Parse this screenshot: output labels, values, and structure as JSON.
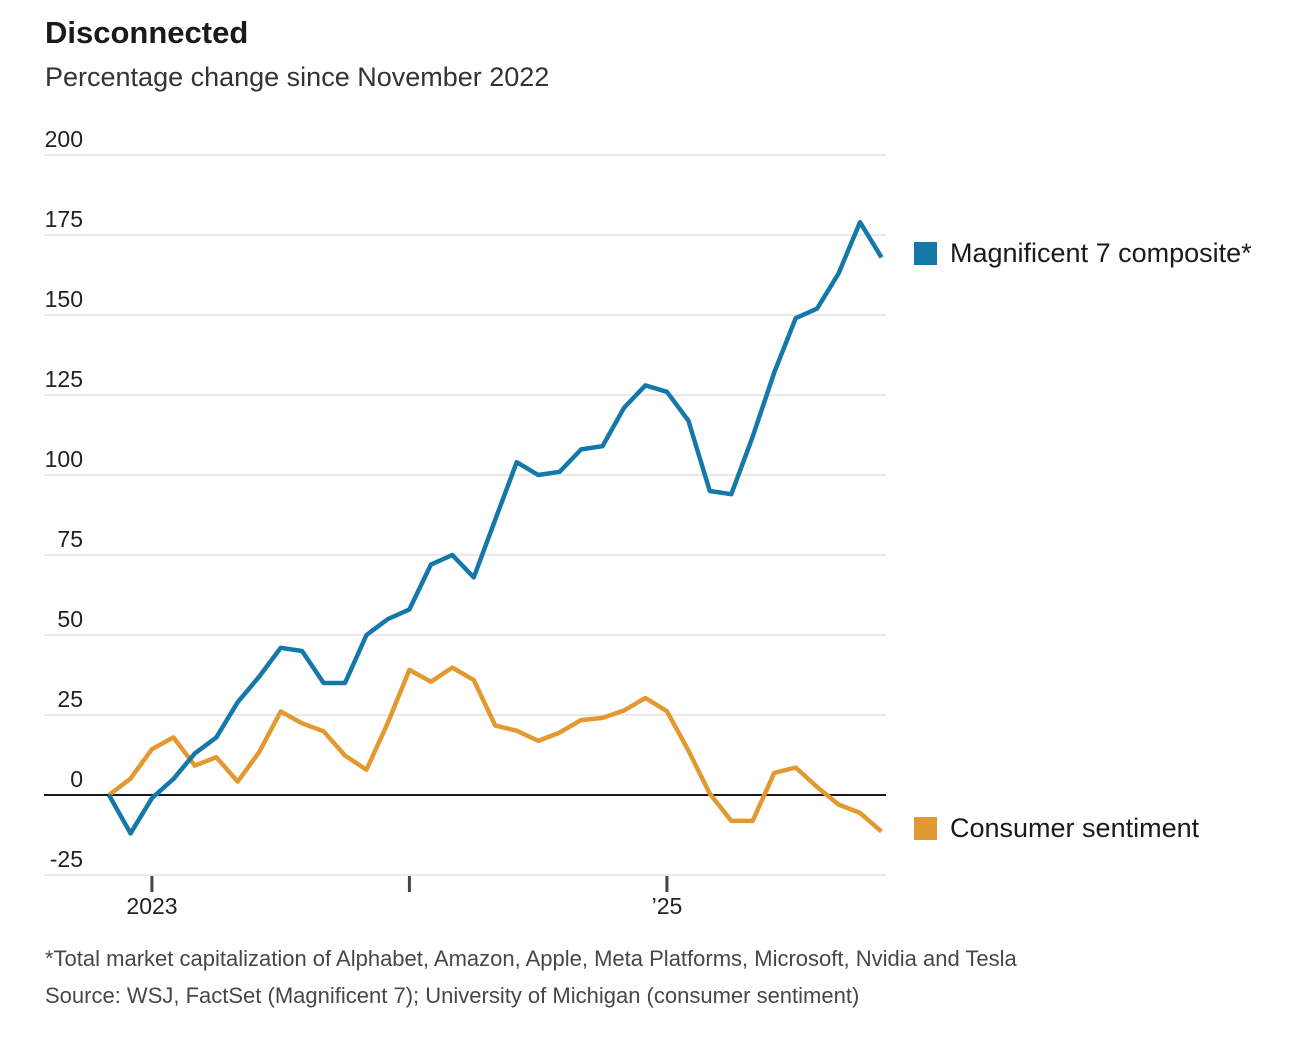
{
  "header": {
    "title": "Disconnected",
    "subtitle": "Percentage change since November 2022"
  },
  "legend": [
    {
      "label": "Magnificent 7 composite*",
      "color": "#1478a8"
    },
    {
      "label": "Consumer sentiment",
      "color": "#e29a30"
    }
  ],
  "notes": {
    "footnote": "*Total market capitalization of Alphabet, Amazon, Apple, Meta Platforms, Microsoft, Nvidia and Tesla",
    "source": "Source: WSJ, FactSet (Magnificent 7); University of Michigan (consumer sentiment)"
  },
  "chart_data": {
    "type": "line",
    "title": "Disconnected",
    "subtitle": "Percentage change since November 2022",
    "unit": "percent change since November 2022",
    "grid": "horizontal",
    "zero_line": true,
    "legend_position": "right",
    "ylim": [
      -25,
      200
    ],
    "ytick_step": 25,
    "yticks": [
      200,
      175,
      150,
      125,
      100,
      75,
      50,
      25,
      0,
      -25
    ],
    "xticks": [
      {
        "index": 2,
        "label": "2023"
      },
      {
        "index": 14,
        "label": ""
      },
      {
        "index": 26,
        "label": "’25"
      }
    ],
    "x": [
      "Nov 2022",
      "Dec 2022",
      "Jan 2023",
      "Feb 2023",
      "Mar 2023",
      "Apr 2023",
      "May 2023",
      "Jun 2023",
      "Jul 2023",
      "Aug 2023",
      "Sep 2023",
      "Oct 2023",
      "Nov 2023",
      "Dec 2023",
      "Jan 2024",
      "Feb 2024",
      "Mar 2024",
      "Apr 2024",
      "May 2024",
      "Jun 2024",
      "Jul 2024",
      "Aug 2024",
      "Sep 2024",
      "Oct 2024",
      "Nov 2024",
      "Dec 2024",
      "Jan 2025",
      "Feb 2025",
      "Mar 2025",
      "Apr 2025",
      "May 2025",
      "Jun 2025",
      "Jul 2025",
      "Aug 2025",
      "Sep 2025",
      "Oct 2025",
      "Nov 2025"
    ],
    "series": [
      {
        "name": "Magnificent 7 composite*",
        "color": "#1478a8",
        "values": [
          0,
          -12,
          -1,
          5,
          13,
          18,
          29,
          37,
          46,
          45,
          35,
          35,
          50,
          55,
          58,
          72,
          75,
          68,
          86,
          104,
          100,
          101,
          108,
          109,
          121,
          128,
          126,
          117,
          95,
          94,
          112,
          132,
          149,
          152,
          163,
          179,
          168
        ]
      },
      {
        "name": "Consumer sentiment",
        "color": "#e29a30",
        "values": [
          0,
          5.1,
          14.3,
          18,
          9.2,
          11.8,
          4.2,
          13.4,
          26.1,
          22.4,
          19.9,
          12.3,
          7.9,
          22.7,
          39.1,
          35.4,
          39.8,
          35.9,
          21.7,
          20.1,
          16.9,
          19.5,
          23.4,
          24.1,
          26.4,
          30.3,
          26.2,
          13.9,
          0.4,
          -8.1,
          -8.1,
          6.9,
          8.6,
          2.5,
          -3,
          -5.6,
          -11.4
        ]
      }
    ]
  }
}
